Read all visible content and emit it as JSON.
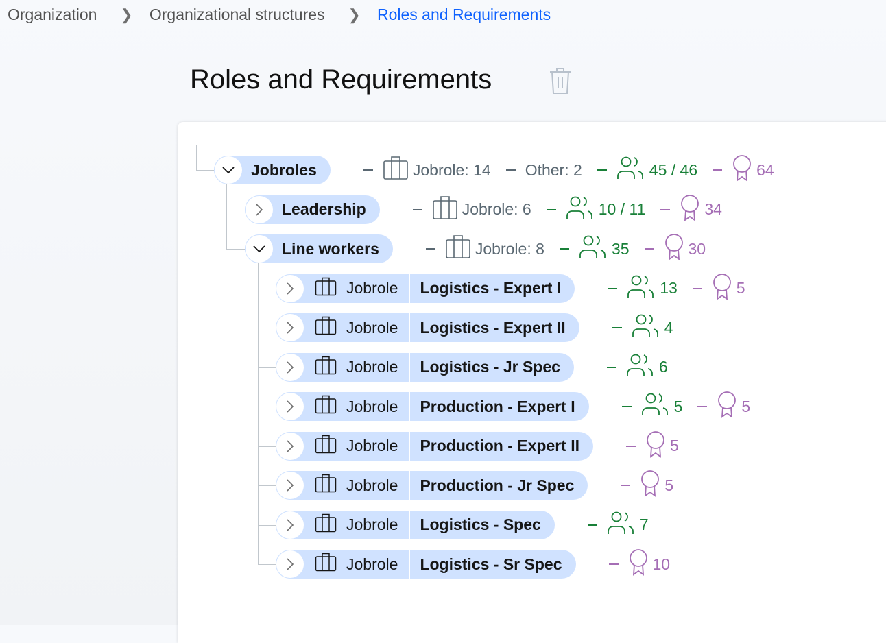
{
  "breadcrumb": [
    {
      "label": "Organization"
    },
    {
      "label": "Organizational structures"
    },
    {
      "label": "Roles and Requirements",
      "current": true
    }
  ],
  "page_title": "Roles and Requirements",
  "icons": {
    "delete": "trash-icon",
    "expand": "chevron-icon",
    "jobrole": "briefcase-icon",
    "people": "user-group-icon",
    "requirements": "certificate-icon"
  },
  "colors": {
    "accent": "#0f62fe",
    "pill": "#d0e2ff",
    "neutral": "#5a6872",
    "people": "#198038",
    "requirements": "#a56eb5"
  },
  "tree": [
    {
      "level": 0,
      "expanded": true,
      "label": "Jobroles",
      "stats": [
        {
          "kind": "jobrole",
          "text": "Jobrole: 14"
        },
        {
          "kind": "other",
          "text": "Other: 2"
        },
        {
          "kind": "people",
          "text": "45 / 46"
        },
        {
          "kind": "cert",
          "text": "64"
        }
      ]
    },
    {
      "level": 1,
      "expanded": false,
      "label": "Leadership",
      "stats": [
        {
          "kind": "jobrole",
          "text": "Jobrole: 6"
        },
        {
          "kind": "people",
          "text": "10 / 11"
        },
        {
          "kind": "cert",
          "text": "34"
        }
      ]
    },
    {
      "level": 1,
      "expanded": true,
      "label": "Line workers",
      "stats": [
        {
          "kind": "jobrole",
          "text": "Jobrole: 8"
        },
        {
          "kind": "people",
          "text": "35"
        },
        {
          "kind": "cert",
          "text": "30"
        }
      ]
    },
    {
      "level": 2,
      "expanded": false,
      "type": "Jobrole",
      "label": "Logistics - Expert I",
      "stats": [
        {
          "kind": "people",
          "text": "13"
        },
        {
          "kind": "cert",
          "text": "5"
        }
      ]
    },
    {
      "level": 2,
      "expanded": false,
      "type": "Jobrole",
      "label": "Logistics - Expert II",
      "stats": [
        {
          "kind": "people",
          "text": "4"
        }
      ]
    },
    {
      "level": 2,
      "expanded": false,
      "type": "Jobrole",
      "label": "Logistics - Jr Spec",
      "stats": [
        {
          "kind": "people",
          "text": "6"
        }
      ]
    },
    {
      "level": 2,
      "expanded": false,
      "type": "Jobrole",
      "label": "Production - Expert I",
      "stats": [
        {
          "kind": "people",
          "text": "5"
        },
        {
          "kind": "cert",
          "text": "5"
        }
      ]
    },
    {
      "level": 2,
      "expanded": false,
      "type": "Jobrole",
      "label": "Production - Expert II",
      "stats": [
        {
          "kind": "cert",
          "text": "5"
        }
      ]
    },
    {
      "level": 2,
      "expanded": false,
      "type": "Jobrole",
      "label": "Production - Jr Spec",
      "stats": [
        {
          "kind": "cert",
          "text": "5"
        }
      ]
    },
    {
      "level": 2,
      "expanded": false,
      "type": "Jobrole",
      "label": "Logistics - Spec",
      "stats": [
        {
          "kind": "people",
          "text": "7"
        }
      ]
    },
    {
      "level": 2,
      "expanded": false,
      "type": "Jobrole",
      "label": "Logistics - Sr Spec",
      "stats": [
        {
          "kind": "cert",
          "text": "10"
        }
      ]
    }
  ]
}
